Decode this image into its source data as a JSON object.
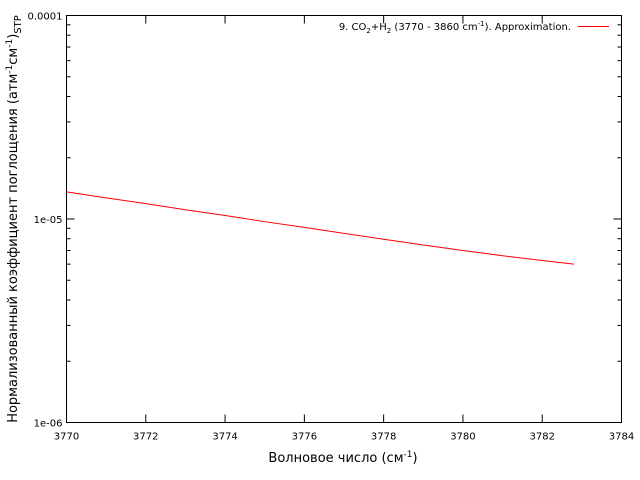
{
  "chart_data": {
    "type": "line",
    "xlabel": {
      "main": "Волновое число (см",
      "sup": "-1",
      "end": ")"
    },
    "ylabel": {
      "main": "Нормализованный коэффициент поглощения (атм",
      "sup1": "-1",
      "mid": "см",
      "sup2": "-1",
      "close": ")",
      "sub": "STP"
    },
    "xlim": [
      3770,
      3784
    ],
    "ylim": [
      1e-06,
      0.0001
    ],
    "yscale": "log",
    "grid": false,
    "legend_position": "top-right",
    "x_ticks": [
      3770,
      3772,
      3774,
      3776,
      3778,
      3780,
      3782,
      3784
    ],
    "x_tick_labels": [
      "3770",
      "3772",
      "3774",
      "3776",
      "3778",
      "3780",
      "3782",
      "3784"
    ],
    "y_ticks": [
      1e-06,
      1e-05,
      0.0001
    ],
    "y_tick_labels": [
      "1e-06",
      "1e-05",
      "0.0001"
    ],
    "series": [
      {
        "legend": {
          "p1": "9. CO",
          "s1": "2",
          "p2": "+H",
          "s2": "2",
          "p3": " (3770 - 3860 cm",
          "sup": "-1",
          "p4": "). Approximation."
        },
        "color": "#ff0000",
        "x": [
          3770,
          3771,
          3772,
          3773,
          3774,
          3775,
          3776,
          3777,
          3778,
          3779,
          3780,
          3781,
          3782,
          3782.8
        ],
        "y": [
          1.36e-05,
          1.27e-05,
          1.19e-05,
          1.11e-05,
          1.04e-05,
          9.7e-06,
          9.1e-06,
          8.5e-06,
          7.95e-06,
          7.45e-06,
          7e-06,
          6.6e-06,
          6.25e-06,
          6e-06
        ]
      }
    ]
  }
}
